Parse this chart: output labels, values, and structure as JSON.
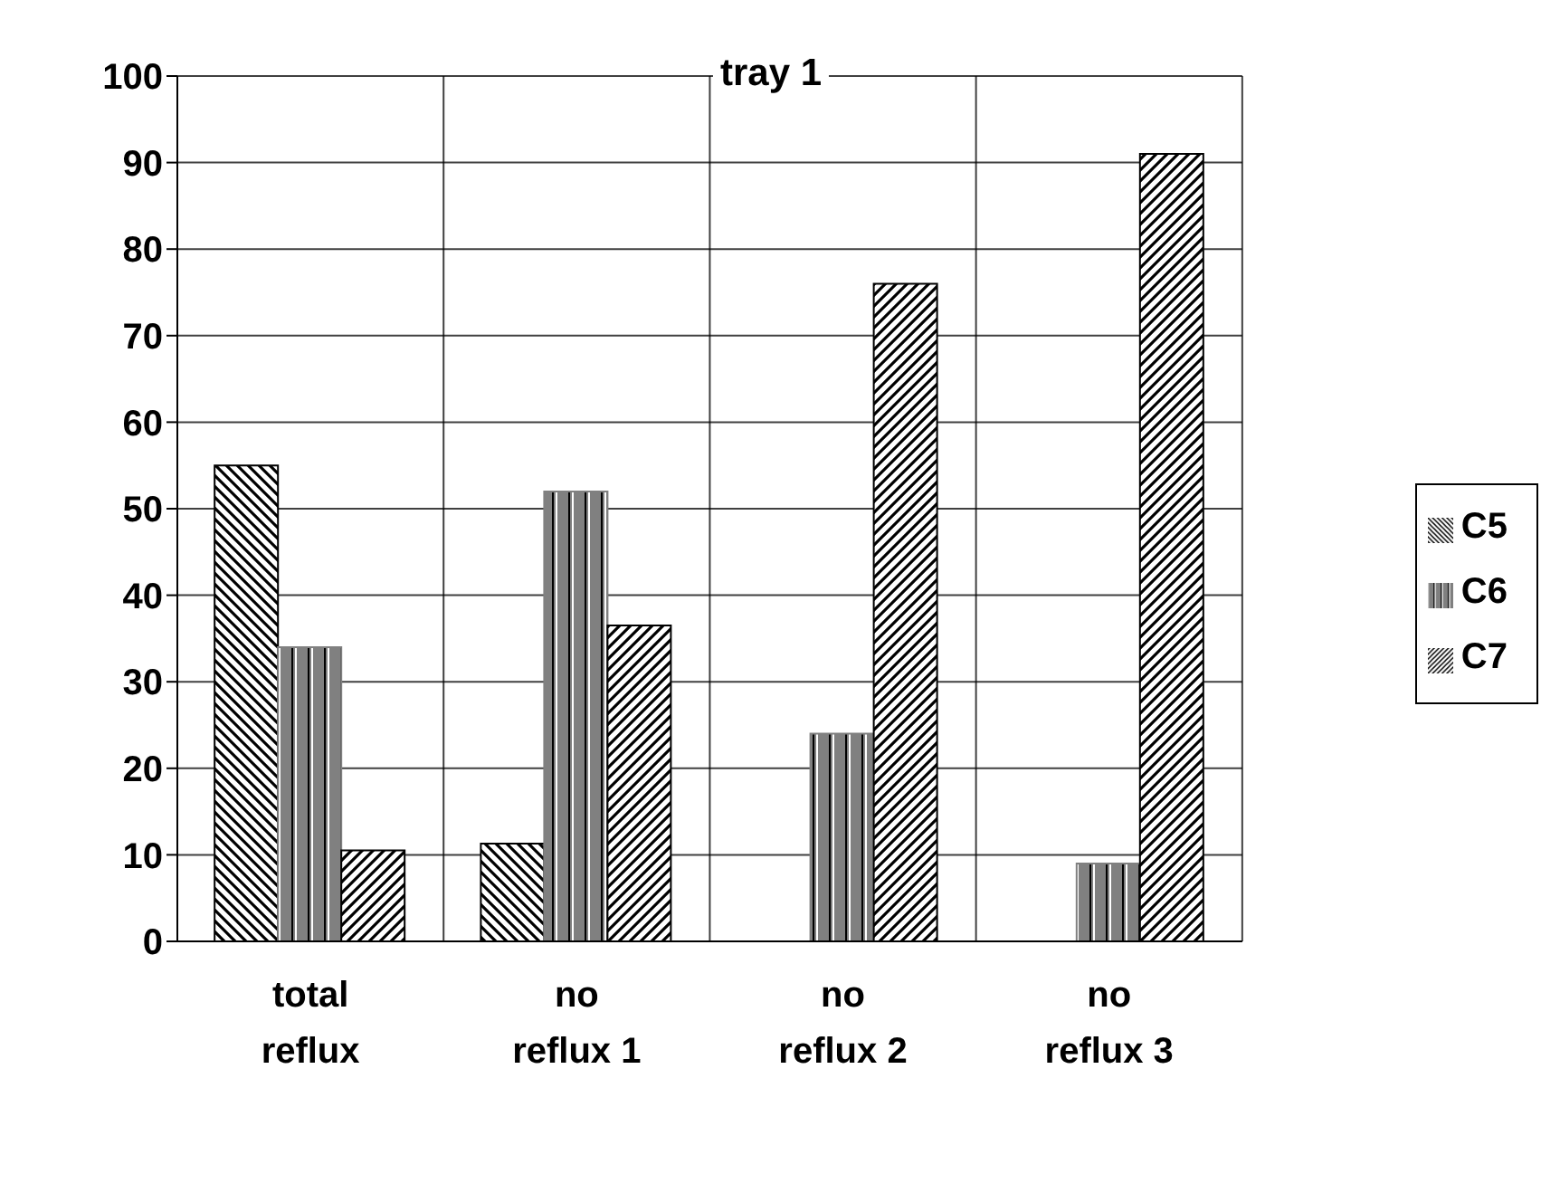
{
  "chart_data": {
    "type": "bar",
    "title": "tray 1",
    "categories": [
      "total reflux",
      "no reflux 1",
      "no reflux 2",
      "no reflux 3"
    ],
    "series": [
      {
        "name": "C5",
        "color": "#000000",
        "values": [
          55,
          11.3,
          0,
          0
        ]
      },
      {
        "name": "C6",
        "color": "#808080",
        "values": [
          34,
          52,
          24,
          9
        ]
      },
      {
        "name": "C7",
        "color": "#000000",
        "values": [
          10.5,
          36.5,
          76,
          91
        ]
      }
    ],
    "ylim": [
      0,
      100
    ],
    "yticks": [
      0,
      10,
      20,
      30,
      40,
      50,
      60,
      70,
      80,
      90,
      100
    ],
    "grid": true,
    "legend": "right"
  }
}
